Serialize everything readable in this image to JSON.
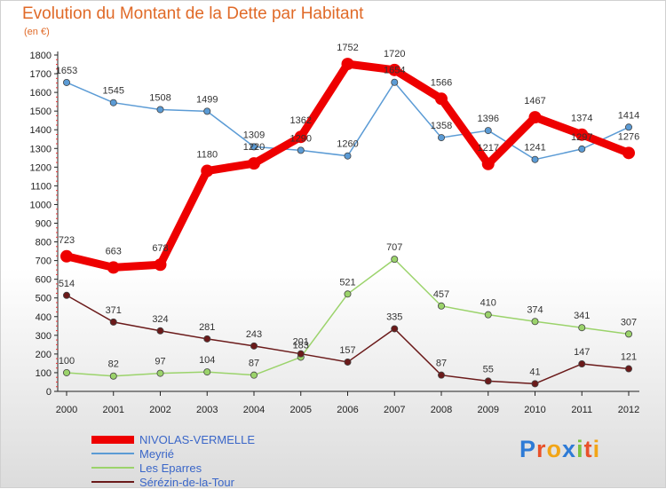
{
  "header": {
    "title": "Evolution du Montant de la Dette par Habitant",
    "unit": "(en €)"
  },
  "logo": {
    "letters": [
      "P",
      "r",
      "o",
      "x",
      "i",
      "t",
      "i"
    ],
    "colors": [
      "#2e7bd6",
      "#e8512a",
      "#f2a516",
      "#2e7bd6",
      "#7cc242",
      "#e8512a",
      "#f2a516"
    ]
  },
  "chart_data": {
    "type": "line",
    "title": "Evolution du Montant de la Dette par Habitant",
    "ylabel": "(en €)",
    "xlabel": "",
    "ylim": [
      0,
      1800
    ],
    "yticks": [
      0,
      100,
      200,
      300,
      400,
      500,
      600,
      700,
      800,
      900,
      1000,
      1100,
      1200,
      1300,
      1400,
      1500,
      1600,
      1700,
      1800
    ],
    "categories": [
      "2000",
      "2001",
      "2002",
      "2003",
      "2004",
      "2005",
      "2006",
      "2007",
      "2008",
      "2009",
      "2010",
      "2011",
      "2012"
    ],
    "grid": false,
    "legend_position": "bottom-left",
    "series": [
      {
        "name": "Meyrié",
        "color": "#5b9bd5",
        "values": [
          1653,
          1545,
          1508,
          1499,
          1309,
          1290,
          1260,
          1654,
          1358,
          1396,
          1241,
          1297,
          1414
        ],
        "labels": [
          "1653",
          "1545",
          "1508",
          "1499",
          "1309",
          "1290",
          "1260",
          "1654",
          "1358",
          "1396",
          "1241",
          "1297",
          "1414"
        ]
      },
      {
        "name": "Les Eparres",
        "color": "#9bd36b",
        "values": [
          100,
          82,
          97,
          104,
          87,
          183,
          521,
          707,
          457,
          410,
          374,
          341,
          307
        ],
        "labels": [
          "100",
          "82",
          "97",
          "104",
          "87",
          "183",
          "521",
          "707",
          "457",
          "410",
          "374",
          "341",
          "307"
        ]
      },
      {
        "name": "Sérézin-de-la-Tour",
        "color": "#6b1a1a",
        "values": [
          514,
          371,
          324,
          281,
          243,
          201,
          157,
          335,
          87,
          55,
          41,
          147,
          121
        ],
        "labels": [
          "514",
          "371",
          "324",
          "281",
          "243",
          "201",
          "157",
          "335",
          "87",
          "55",
          "41",
          "147",
          "121"
        ]
      },
      {
        "name": "NIVOLAS-VERMELLE",
        "color": "#ee0000",
        "values": [
          723,
          663,
          678,
          1180,
          1220,
          1362,
          1752,
          1720,
          1566,
          1217,
          1467,
          1374,
          1276
        ],
        "labels": [
          "723",
          "663",
          "678",
          "1180",
          "1220",
          "1362",
          "1752",
          "1720",
          "1566",
          "1217",
          "1467",
          "1374",
          "1276"
        ]
      }
    ],
    "legend_order": [
      "NIVOLAS-VERMELLE",
      "Meyrié",
      "Les Eparres",
      "Sérézin-de-la-Tour"
    ]
  }
}
